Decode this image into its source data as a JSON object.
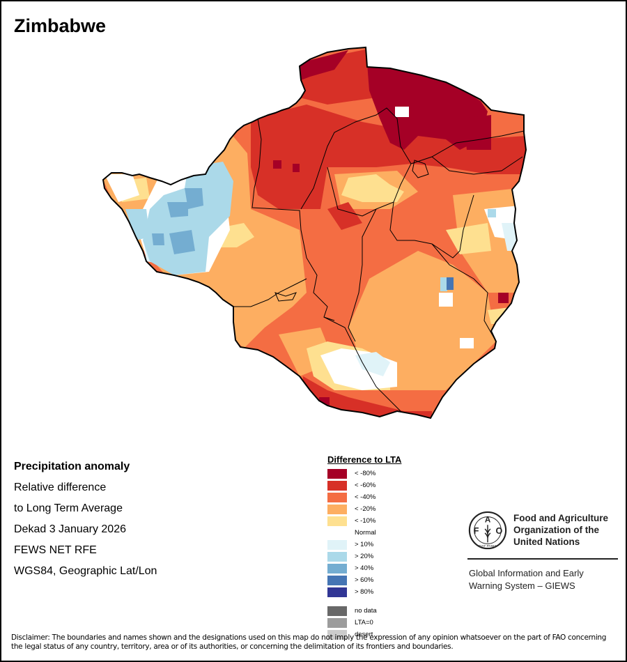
{
  "title": "Zimbabwe",
  "info_lines": [
    "Precipitation anomaly",
    "Relative difference",
    "to Long Term Average",
    "Dekad 3 January 2026",
    "FEWS NET RFE",
    "WGS84, Geographic Lat/Lon"
  ],
  "legend": {
    "title": "Difference to LTA",
    "classes": [
      {
        "label": "< -80%",
        "color": "#a50026"
      },
      {
        "label": "< -60%",
        "color": "#d73027"
      },
      {
        "label": "< -40%",
        "color": "#f46d43"
      },
      {
        "label": "< -20%",
        "color": "#fdae61"
      },
      {
        "label": "< -10%",
        "color": "#fee090"
      },
      {
        "label": "Normal",
        "color": "#ffffff"
      },
      {
        "label": "> 10%",
        "color": "#e0f3f8"
      },
      {
        "label": "> 20%",
        "color": "#abd9e9"
      },
      {
        "label": "> 40%",
        "color": "#74add1"
      },
      {
        "label": "> 60%",
        "color": "#4575b4"
      },
      {
        "label": "> 80%",
        "color": "#313695"
      }
    ],
    "special": [
      {
        "label": "no data",
        "color": "#686868"
      },
      {
        "label": "LTA=0",
        "color": "#9c9c9c"
      },
      {
        "label": "desert",
        "color": "#cccccc"
      }
    ]
  },
  "organization": {
    "name_lines": [
      "Food and Agriculture",
      "Organization of the",
      "United Nations"
    ],
    "logo_letters": {
      "left": "F",
      "top": "A",
      "right": "O",
      "motto": "FIAT PANIS"
    },
    "system_lines": [
      "Global Information and Early",
      "Warning System – GIEWS"
    ]
  },
  "disclaimer": "Disclaimer: The boundaries and names shown and the designations used on this map do not imply the expression of any opinion whatsoever on the part of FAO concerning the legal status of any country, territory, area or of its authorities, or concerning the delimitation of its frontiers and boundaries."
}
